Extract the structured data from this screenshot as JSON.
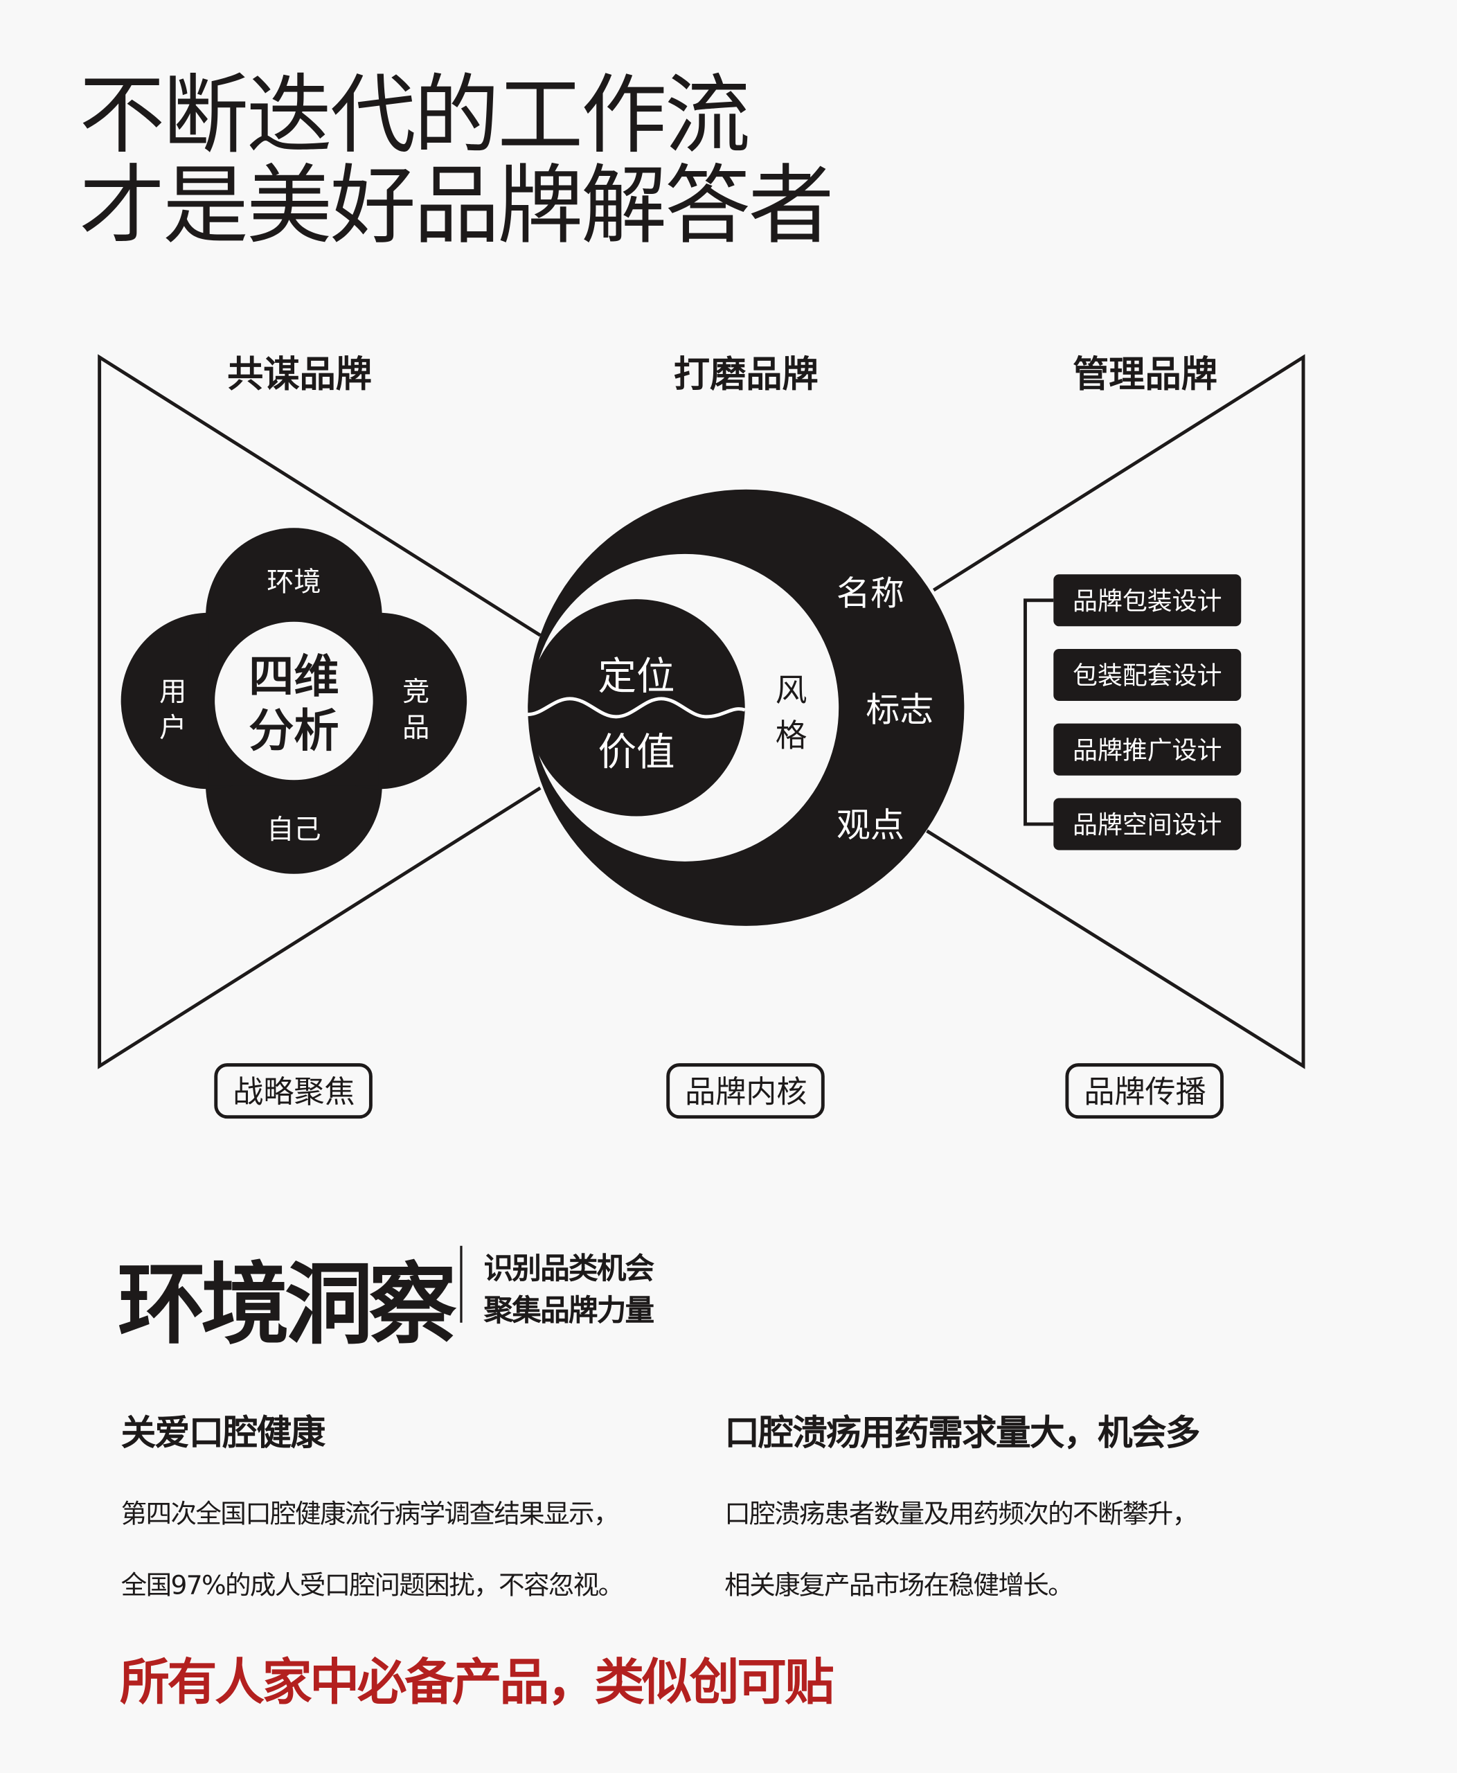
{
  "title": {
    "line1": "不断迭代的工作流",
    "line2": "才是美好品牌解答者"
  },
  "diagram": {
    "columns": [
      {
        "heading": "共谋品牌",
        "footer": "战略聚焦"
      },
      {
        "heading": "打磨品牌",
        "footer": "品牌内核"
      },
      {
        "heading": "管理品牌",
        "footer": "品牌传播"
      }
    ],
    "clover": {
      "center": "四维分析",
      "center_line1": "四维",
      "center_line2": "分析",
      "top": "环境",
      "bottom": "自己",
      "left_line1": "用",
      "left_line2": "户",
      "right_line1": "竞",
      "right_line2": "品"
    },
    "core": {
      "inner_top": "定位",
      "inner_bottom": "价值",
      "middle_line1": "风",
      "middle_line2": "格",
      "outer": [
        "名称",
        "标志",
        "观点"
      ]
    },
    "management_items": [
      "品牌包装设计",
      "包装配套设计",
      "品牌推广设计",
      "品牌空间设计"
    ],
    "colors": {
      "ink": "#1d1a1a",
      "background": "#f8f8f8"
    }
  },
  "section": {
    "title": "环境洞察",
    "subtitle_line1": "识别品类机会",
    "subtitle_line2": "聚集品牌力量",
    "left": {
      "heading": "关爱口腔健康",
      "line1": "第四次全国口腔健康流行病学调查结果显示，",
      "line2": "全国97%的成人受口腔问题困扰，不容忽视。"
    },
    "right": {
      "heading": "口腔溃疡用药需求量大，机会多",
      "line1": "口腔溃疡患者数量及用药频次的不断攀升，",
      "line2": "相关康复产品市场在稳健增长。"
    },
    "highlight": "所有人家中必备产品，类似创可贴",
    "highlight_color": "#b3201f"
  }
}
